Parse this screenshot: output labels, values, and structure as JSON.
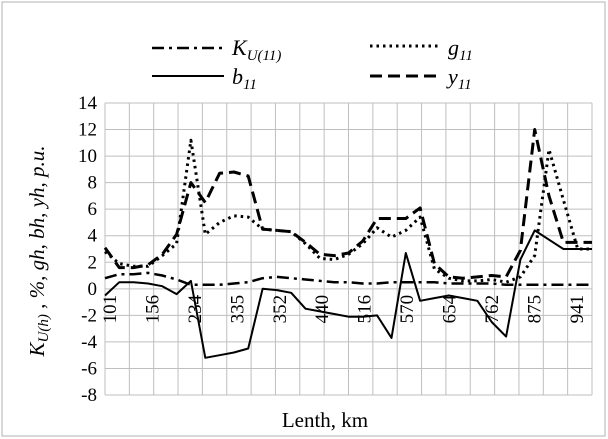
{
  "chart_data": {
    "type": "line",
    "xlabel": "Lenth, km",
    "ylabel": "Kᵤ₍ₕ₎ , %, gh, bh, yh, p.u.",
    "ylim": [
      -8,
      14
    ],
    "y_ticks": [
      -8,
      -6,
      -4,
      -2,
      0,
      2,
      4,
      6,
      8,
      10,
      12,
      14
    ],
    "x_tick_labels": [
      "101",
      "156",
      "234",
      "335",
      "352",
      "440",
      "516",
      "570",
      "654",
      "762",
      "875",
      "941"
    ],
    "grid": true,
    "legend_position": "top",
    "x": [
      0,
      1,
      2,
      3,
      4,
      5,
      6,
      7,
      8,
      9,
      10,
      11,
      12,
      13,
      14,
      15,
      16,
      17,
      18,
      19,
      20,
      21,
      22,
      23,
      24,
      25,
      26,
      27,
      28,
      29,
      30,
      31,
      32,
      33,
      34
    ],
    "series": [
      {
        "name": "K_U(11)",
        "style": "dashdot",
        "color": "#000000",
        "values": [
          0.8,
          1.1,
          1.1,
          1.2,
          1.0,
          0.7,
          0.3,
          0.3,
          0.3,
          0.4,
          0.5,
          0.8,
          0.9,
          0.8,
          0.7,
          0.6,
          0.5,
          0.5,
          0.4,
          0.4,
          0.5,
          0.5,
          0.5,
          0.5,
          0.4,
          0.4,
          0.4,
          0.4,
          0.3,
          0.3,
          0.3,
          0.3,
          0.3,
          0.3,
          0.3
        ]
      },
      {
        "name": "g_11",
        "style": "dotted",
        "color": "#000000",
        "values": [
          2.8,
          1.9,
          1.7,
          1.7,
          2.5,
          3.4,
          11.2,
          4.1,
          5.0,
          5.5,
          5.4,
          4.5,
          4.4,
          4.3,
          3.4,
          2.3,
          2.2,
          2.6,
          3.4,
          4.6,
          3.9,
          4.4,
          5.4,
          1.5,
          0.8,
          0.6,
          0.6,
          0.7,
          0.5,
          0.9,
          2.5,
          10.5,
          6.7,
          3.0,
          3.0
        ]
      },
      {
        "name": "b_11",
        "style": "solid",
        "color": "#000000",
        "values": [
          -0.5,
          0.5,
          0.5,
          0.4,
          0.2,
          -0.4,
          0.6,
          -5.2,
          -5.0,
          -4.8,
          -4.5,
          0.0,
          -0.1,
          -0.3,
          -1.5,
          -1.7,
          -1.9,
          -2.1,
          -2.1,
          -2.0,
          -3.7,
          2.7,
          -0.9,
          -0.7,
          -0.5,
          -0.7,
          -0.9,
          -2.5,
          -3.6,
          2.2,
          4.4,
          3.7,
          3.0,
          3.0,
          3.0
        ]
      },
      {
        "name": "y_11",
        "style": "dashed",
        "color": "#000000",
        "values": [
          3.1,
          1.6,
          1.6,
          1.8,
          2.6,
          4.1,
          8.0,
          6.5,
          8.7,
          8.8,
          8.5,
          4.5,
          4.4,
          4.3,
          3.5,
          2.6,
          2.5,
          2.7,
          3.6,
          5.3,
          5.3,
          5.3,
          6.1,
          1.9,
          0.9,
          0.8,
          0.9,
          1.0,
          0.9,
          2.9,
          12.0,
          7.0,
          3.5,
          3.5,
          3.5
        ]
      }
    ]
  }
}
